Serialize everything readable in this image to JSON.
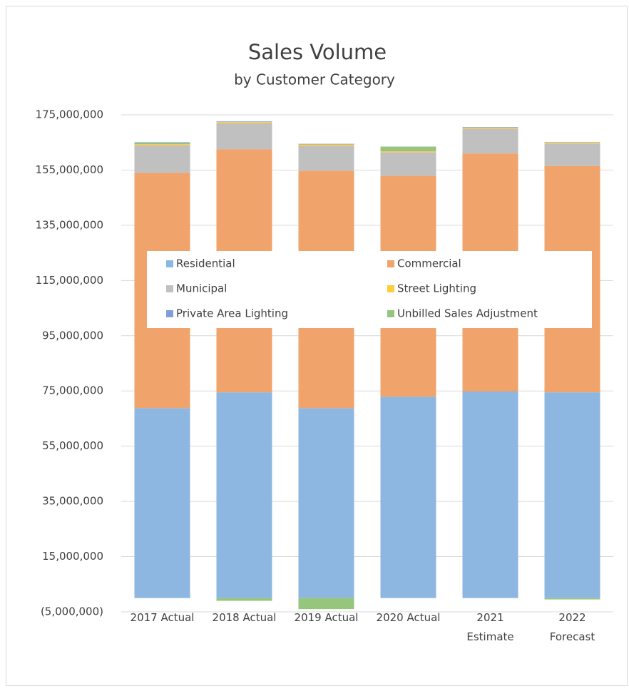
{
  "chart_data": {
    "type": "stacked_bar",
    "title": "Sales Volume",
    "subtitle": "by Customer Category",
    "categories": [
      "2017 Actual",
      "2018 Actual",
      "2019 Actual",
      "2020 Actual",
      "2021\nEstimate",
      "2022\nForecast"
    ],
    "series": [
      {
        "name": "Residential",
        "color": "#8db7e1",
        "values": [
          68800000,
          74500000,
          68800000,
          72900000,
          74800000,
          74500000
        ]
      },
      {
        "name": "Commercial",
        "color": "#f0a36b",
        "values": [
          85200000,
          88000000,
          85900000,
          80000000,
          86200000,
          82000000
        ]
      },
      {
        "name": "Municipal",
        "color": "#c0c0c0",
        "values": [
          10000000,
          9500000,
          9100000,
          8500000,
          9000000,
          8000000
        ]
      },
      {
        "name": "Street Lighting",
        "color": "#ffcc3a",
        "values": [
          400000,
          400000,
          500000,
          400000,
          400000,
          400000
        ]
      },
      {
        "name": "Private Area Lighting",
        "color": "#7f9fd8",
        "values": [
          200000,
          200000,
          200000,
          200000,
          200000,
          200000
        ]
      },
      {
        "name": "Unbilled Sales Adjustment",
        "color": "#96c57d",
        "values": [
          500000,
          -1000000,
          -4000000,
          1500000,
          0,
          -500000
        ]
      }
    ],
    "ylim": [
      -5000000,
      175000000
    ],
    "yticks": [
      {
        "value": -5000000,
        "label": "(5,000,000)"
      },
      {
        "value": 15000000,
        "label": "15,000,000"
      },
      {
        "value": 35000000,
        "label": "35,000,000"
      },
      {
        "value": 55000000,
        "label": "55,000,000"
      },
      {
        "value": 75000000,
        "label": "75,000,000"
      },
      {
        "value": 95000000,
        "label": "95,000,000"
      },
      {
        "value": 115000000,
        "label": "115,000,000"
      },
      {
        "value": 135000000,
        "label": "135,000,000"
      },
      {
        "value": 155000000,
        "label": "155,000,000"
      },
      {
        "value": 175000000,
        "label": "175,000,000"
      }
    ],
    "grid": true,
    "legend": "center"
  }
}
